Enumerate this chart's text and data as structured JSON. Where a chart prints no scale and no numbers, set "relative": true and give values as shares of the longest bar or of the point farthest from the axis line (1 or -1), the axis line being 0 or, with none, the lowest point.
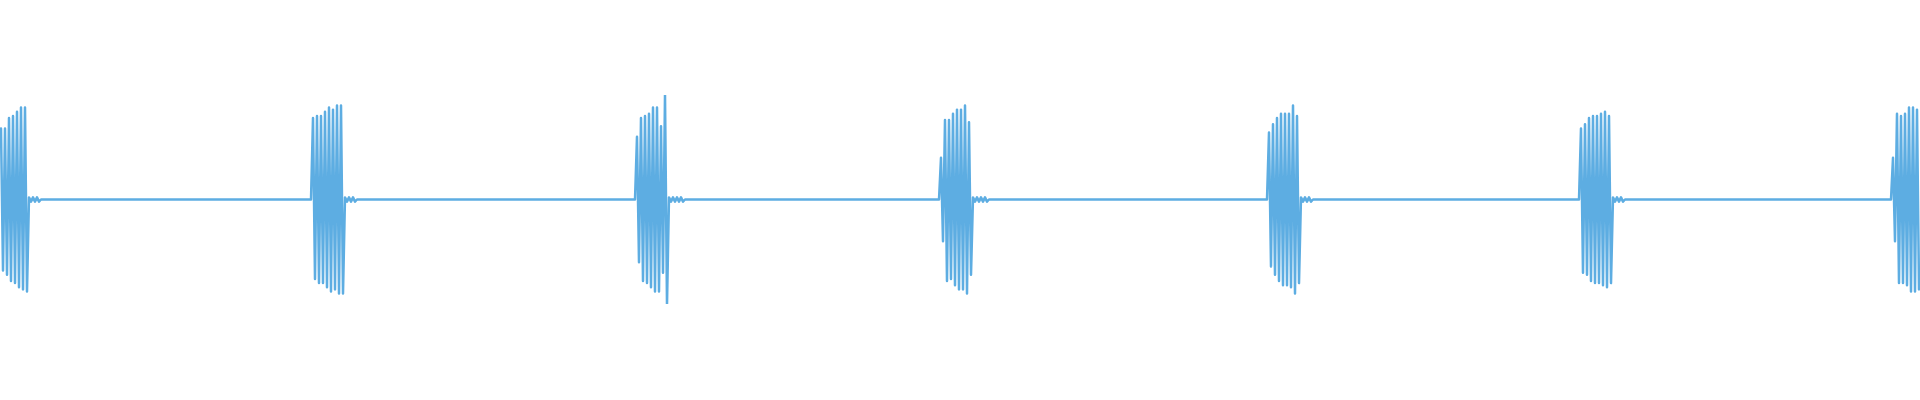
{
  "chart_data": {
    "type": "line",
    "relative": true,
    "categories": [
      null,
      null,
      null,
      null,
      null,
      null,
      null,
      null,
      null,
      null,
      null,
      null,
      null,
      null,
      null,
      null,
      null,
      null,
      null,
      null,
      null,
      null,
      null,
      null,
      null,
      null,
      null,
      null,
      null,
      null,
      null,
      null,
      null,
      null,
      null,
      null,
      null,
      null,
      null,
      null,
      null,
      null,
      null,
      null,
      null,
      null,
      null,
      null,
      null,
      null,
      null,
      null,
      null,
      null,
      null,
      null,
      null,
      null,
      null,
      null,
      null,
      null,
      null,
      null,
      null,
      null,
      null,
      null,
      null,
      null,
      null,
      null,
      null,
      null,
      null,
      null,
      null,
      null,
      null,
      null,
      null,
      null,
      null,
      null,
      null,
      null,
      null,
      null,
      null,
      null,
      null,
      null,
      null,
      null,
      null,
      null,
      null,
      null,
      null,
      null,
      null,
      null,
      null,
      null,
      null,
      null,
      null,
      null,
      null,
      null,
      null,
      null,
      null,
      null,
      null,
      null,
      null,
      null,
      null,
      null,
      null,
      null,
      null,
      null,
      null,
      null,
      null,
      null,
      null,
      null,
      null,
      null,
      null,
      null,
      null,
      null,
      null,
      null,
      null,
      null,
      null,
      null,
      null,
      null,
      null,
      null,
      null,
      null,
      null,
      null,
      null,
      null,
      null,
      null,
      null,
      null,
      null,
      null,
      null,
      null,
      null,
      null,
      null,
      null,
      null,
      null,
      null,
      null,
      null,
      null,
      null,
      null,
      null,
      null,
      null,
      null,
      null,
      null,
      null,
      null,
      null,
      null,
      null,
      null,
      null,
      null,
      null,
      null,
      null,
      null,
      null,
      null,
      null,
      null,
      null,
      null,
      null,
      null,
      null,
      null,
      null,
      null,
      null,
      null,
      null,
      null,
      null,
      null,
      null,
      null,
      null,
      null,
      null,
      null,
      null,
      null,
      null,
      null,
      null,
      null,
      null,
      null,
      null,
      null,
      null,
      null,
      null,
      null,
      null,
      null,
      null,
      null,
      null,
      null,
      null,
      null,
      null,
      null,
      null,
      null,
      null,
      null,
      null,
      null,
      null,
      null,
      null,
      null,
      null,
      null,
      null,
      null,
      null,
      null,
      null,
      null,
      null,
      null,
      null,
      null,
      null,
      null,
      null,
      null,
      null,
      null,
      null,
      null,
      null,
      null,
      null,
      null,
      null,
      null,
      null,
      null,
      null,
      null,
      null,
      null,
      null,
      null,
      null,
      null,
      null,
      null,
      null,
      null,
      null,
      null,
      null,
      null,
      null,
      null,
      null,
      null,
      null,
      null,
      null,
      null,
      null,
      null,
      null,
      null,
      null,
      null,
      null,
      null,
      null,
      null,
      null,
      null,
      null,
      null,
      null,
      null,
      null,
      null,
      null,
      null,
      null,
      null,
      null,
      null,
      null,
      null,
      null,
      null,
      null,
      null,
      null,
      null,
      null,
      null,
      null,
      null,
      null,
      null,
      null,
      null,
      null,
      null,
      null,
      null,
      null,
      null,
      null,
      null,
      null,
      null,
      null,
      null,
      null,
      null,
      null,
      null,
      null,
      null,
      null,
      null,
      null,
      null,
      null,
      null,
      null,
      null,
      null,
      null,
      null,
      null,
      null,
      null,
      null,
      null,
      null,
      null,
      null,
      null,
      null,
      null,
      null,
      null,
      null,
      null,
      null,
      null,
      null,
      null,
      null,
      null,
      null,
      null,
      null,
      null,
      null,
      null,
      null,
      null,
      null,
      null,
      null,
      null,
      null,
      null,
      null,
      null,
      null,
      null,
      null,
      null,
      null,
      null,
      null,
      null,
      null,
      null,
      null,
      null,
      null,
      null,
      null,
      null,
      null,
      null,
      null,
      null,
      null,
      null,
      null,
      null,
      null,
      null,
      null,
      null,
      null,
      null,
      null,
      null,
      null,
      null,
      null,
      null,
      null,
      null,
      null,
      null,
      null,
      null,
      null,
      null,
      null,
      null,
      null,
      null,
      null,
      null,
      null,
      null,
      null,
      null,
      null,
      null,
      null,
      null,
      null,
      null,
      null,
      null,
      null,
      null,
      null,
      null,
      null,
      null,
      null,
      null,
      null,
      null,
      null,
      null,
      null,
      null,
      null,
      null,
      null,
      null,
      null,
      null,
      null,
      null,
      null,
      null,
      null,
      null,
      null,
      null,
      null,
      null,
      null,
      null,
      null,
      null,
      null,
      null,
      null,
      null,
      null,
      null,
      null,
      null,
      null,
      null,
      null,
      null,
      null,
      null,
      null,
      null,
      null,
      null,
      null,
      null,
      null,
      null,
      null,
      null,
      null,
      null,
      null,
      null,
      null,
      null,
      null,
      null,
      null,
      null,
      null,
      null,
      null,
      null,
      null,
      null,
      null,
      null,
      null,
      null,
      null,
      null,
      null,
      null,
      null,
      null,
      null,
      null,
      null,
      null,
      null,
      null,
      null,
      null,
      null,
      null,
      null,
      null,
      null,
      null,
      null,
      null,
      null,
      null,
      null,
      null,
      null,
      null,
      null,
      null,
      null,
      null,
      null,
      null,
      null,
      null,
      null,
      null,
      null,
      null,
      null,
      null,
      null,
      null,
      null,
      null,
      null,
      null,
      null,
      null,
      null,
      null,
      null,
      null,
      null,
      null,
      null,
      null,
      null,
      null,
      null,
      null,
      null,
      null,
      null,
      null,
      null,
      null,
      null,
      null,
      null,
      null,
      null,
      null,
      null,
      null,
      null,
      null,
      null,
      null,
      null,
      null,
      null,
      null,
      null,
      null,
      null,
      null,
      null,
      null,
      null,
      null,
      null,
      null,
      null,
      null,
      null,
      null,
      null,
      null,
      null,
      null,
      null,
      null,
      null,
      null,
      null,
      null,
      null,
      null,
      null,
      null,
      null,
      null,
      null,
      null,
      null,
      null,
      null,
      null,
      null,
      null,
      null,
      null,
      null,
      null,
      null,
      null,
      null,
      null,
      null,
      null,
      null,
      null,
      null,
      null,
      null,
      null,
      null,
      null,
      null,
      null,
      null,
      null,
      null,
      null,
      null,
      null,
      null,
      null,
      null,
      null,
      null,
      null,
      null,
      null,
      null,
      null,
      null,
      null,
      null,
      null,
      null,
      null,
      null,
      null,
      null,
      null,
      null,
      null,
      null,
      null,
      null,
      null,
      null,
      null,
      null,
      null,
      null,
      null,
      null,
      null,
      null,
      null,
      null,
      null,
      null,
      null,
      null,
      null,
      null,
      null,
      null,
      null,
      null,
      null,
      null,
      null,
      null,
      null,
      null,
      null,
      null,
      null,
      null,
      null,
      null,
      null,
      null,
      null,
      null,
      null,
      null,
      null,
      null,
      null,
      null,
      null,
      null,
      null,
      null,
      null,
      null,
      null,
      null,
      null,
      null,
      null,
      null,
      null,
      null,
      null,
      null,
      null,
      null,
      null,
      null,
      null,
      null,
      null,
      null,
      null,
      null,
      null,
      null,
      null,
      null,
      null,
      null,
      null,
      null,
      null,
      null,
      null,
      null,
      null,
      null,
      null,
      null,
      null,
      null,
      null,
      null,
      null,
      null,
      null,
      null,
      null,
      null,
      null,
      null,
      null,
      null,
      null,
      null,
      null,
      null,
      null,
      null,
      null,
      null,
      null,
      null,
      null,
      null,
      null,
      null,
      null,
      null,
      null,
      null,
      null,
      null,
      null,
      null,
      null,
      null,
      null,
      null,
      null,
      null,
      null,
      null,
      null,
      null,
      null,
      null,
      null,
      null,
      null,
      null,
      null,
      null,
      null,
      null,
      null,
      null,
      null,
      null,
      null,
      null,
      null,
      null,
      null,
      null,
      null,
      null,
      null,
      null,
      null,
      null,
      null,
      null,
      null,
      null,
      null,
      null,
      null,
      null,
      null,
      null,
      null,
      null,
      null,
      null,
      null,
      null,
      null,
      null,
      null,
      null,
      null,
      null,
      null,
      null,
      null,
      null,
      null,
      null,
      null,
      null,
      null,
      null,
      null,
      null,
      null,
      null,
      null,
      null,
      null,
      null,
      null,
      null,
      null,
      null,
      null,
      null,
      null,
      null,
      null,
      null,
      null,
      null,
      null,
      null,
      null,
      null,
      null,
      null,
      null,
      null,
      null,
      null,
      null,
      null,
      null,
      null,
      null,
      null,
      null,
      null,
      null,
      null,
      null,
      null,
      null,
      null,
      null,
      null,
      null,
      null,
      null,
      null,
      null
    ],
    "series": [
      {
        "color": "#5dade2",
        "values": [
          0.84,
          0.16,
          0.84,
          0.14,
          0.89,
          0.11,
          0.9,
          0.1,
          0.92,
          0.08,
          0.94,
          0.07,
          0.94,
          0.06,
          0.51,
          0.49,
          0.51,
          0.49,
          0.51,
          0.49,
          0.5,
          0.5,
          0.5,
          0.5,
          0.5,
          0.5,
          0.5,
          0.5,
          0.5,
          0.5,
          0.5,
          0.5,
          0.5,
          0.5,
          0.5,
          0.5,
          0.5,
          0.5,
          0.5,
          0.5,
          0.5,
          0.5,
          0.5,
          0.5,
          0.5,
          0.5,
          0.5,
          0.5,
          0.5,
          0.5,
          0.5,
          0.5,
          0.5,
          0.5,
          0.5,
          0.5,
          0.5,
          0.5,
          0.5,
          0.5,
          0.5,
          0.5,
          0.5,
          0.5,
          0.5,
          0.5,
          0.5,
          0.5,
          0.5,
          0.5,
          0.5,
          0.5,
          0.5,
          0.5,
          0.5,
          0.5,
          0.5,
          0.5,
          0.5,
          0.5,
          0.5,
          0.5,
          0.5,
          0.5,
          0.5,
          0.5,
          0.5,
          0.5,
          0.5,
          0.5,
          0.5,
          0.5,
          0.5,
          0.5,
          0.5,
          0.5,
          0.5,
          0.5,
          0.5,
          0.5,
          0.5,
          0.5,
          0.5,
          0.5,
          0.5,
          0.5,
          0.5,
          0.5,
          0.5,
          0.5,
          0.5,
          0.5,
          0.5,
          0.5,
          0.5,
          0.5,
          0.5,
          0.5,
          0.5,
          0.5,
          0.5,
          0.5,
          0.5,
          0.5,
          0.5,
          0.5,
          0.5,
          0.5,
          0.5,
          0.5,
          0.5,
          0.5,
          0.5,
          0.5,
          0.5,
          0.5,
          0.5,
          0.5,
          0.5,
          0.5,
          0.5,
          0.5,
          0.5,
          0.5,
          0.5,
          0.5,
          0.5,
          0.5,
          0.5,
          0.5,
          0.5,
          0.5,
          0.5,
          0.5,
          0.5,
          0.5,
          0.89,
          0.12,
          0.9,
          0.1,
          0.9,
          0.1,
          0.92,
          0.08,
          0.94,
          0.06,
          0.93,
          0.07,
          0.95,
          0.05,
          0.95,
          0.05,
          0.51,
          0.49,
          0.51,
          0.49,
          0.51,
          0.49,
          0.5,
          0.5,
          0.5,
          0.5,
          0.5,
          0.5,
          0.5,
          0.5,
          0.5,
          0.5,
          0.5,
          0.5,
          0.5,
          0.5,
          0.5,
          0.5,
          0.5,
          0.5,
          0.5,
          0.5,
          0.5,
          0.5,
          0.5,
          0.5,
          0.5,
          0.5,
          0.5,
          0.5,
          0.5,
          0.5,
          0.5,
          0.5,
          0.5,
          0.5,
          0.5,
          0.5,
          0.5,
          0.5,
          0.5,
          0.5,
          0.5,
          0.5,
          0.5,
          0.5,
          0.5,
          0.5,
          0.5,
          0.5,
          0.5,
          0.5,
          0.5,
          0.5,
          0.5,
          0.5,
          0.5,
          0.5,
          0.5,
          0.5,
          0.5,
          0.5,
          0.5,
          0.5,
          0.5,
          0.5,
          0.5,
          0.5,
          0.5,
          0.5,
          0.5,
          0.5,
          0.5,
          0.5,
          0.5,
          0.5,
          0.5,
          0.5,
          0.5,
          0.5,
          0.5,
          0.5,
          0.5,
          0.5,
          0.5,
          0.5,
          0.5,
          0.5,
          0.5,
          0.5,
          0.5,
          0.5,
          0.5,
          0.5,
          0.5,
          0.5,
          0.5,
          0.5,
          0.5,
          0.5,
          0.5,
          0.5,
          0.5,
          0.5,
          0.5,
          0.5,
          0.5,
          0.5,
          0.5,
          0.5,
          0.5,
          0.5,
          0.5,
          0.5,
          0.5,
          0.5,
          0.5,
          0.5,
          0.5,
          0.5,
          0.5,
          0.5,
          0.5,
          0.5,
          0.5,
          0.5,
          0.5,
          0.5,
          0.5,
          0.5,
          0.5,
          0.5,
          0.5,
          0.5,
          0.5,
          0.5,
          0.5,
          0.5,
          0.5,
          0.5,
          0.5,
          0.5,
          0.8,
          0.2,
          0.89,
          0.11,
          0.9,
          0.1,
          0.91,
          0.08,
          0.94,
          0.06,
          0.94,
          0.06,
          0.85,
          0.15,
          1,
          0,
          0.51,
          0.49,
          0.51,
          0.49,
          0.51,
          0.49,
          0.51,
          0.49,
          0.5,
          0.5,
          0.5,
          0.5,
          0.5,
          0.5,
          0.5,
          0.5,
          0.5,
          0.5,
          0.5,
          0.5,
          0.5,
          0.5,
          0.5,
          0.5,
          0.5,
          0.5,
          0.5,
          0.5,
          0.5,
          0.5,
          0.5,
          0.5,
          0.5,
          0.5,
          0.5,
          0.5,
          0.5,
          0.5,
          0.5,
          0.5,
          0.5,
          0.5,
          0.5,
          0.5,
          0.5,
          0.5,
          0.5,
          0.5,
          0.5,
          0.5,
          0.5,
          0.5,
          0.5,
          0.5,
          0.5,
          0.5,
          0.5,
          0.5,
          0.5,
          0.5,
          0.5,
          0.5,
          0.5,
          0.5,
          0.5,
          0.5,
          0.5,
          0.5,
          0.5,
          0.5,
          0.5,
          0.5,
          0.5,
          0.5,
          0.5,
          0.5,
          0.5,
          0.5,
          0.5,
          0.5,
          0.5,
          0.5,
          0.5,
          0.5,
          0.5,
          0.5,
          0.5,
          0.5,
          0.5,
          0.5,
          0.5,
          0.5,
          0.5,
          0.5,
          0.5,
          0.5,
          0.5,
          0.5,
          0.5,
          0.5,
          0.5,
          0.5,
          0.5,
          0.5,
          0.5,
          0.5,
          0.5,
          0.5,
          0.5,
          0.5,
          0.5,
          0.5,
          0.5,
          0.5,
          0.5,
          0.5,
          0.5,
          0.5,
          0.5,
          0.5,
          0.5,
          0.5,
          0.5,
          0.5,
          0.5,
          0.5,
          0.5,
          0.5,
          0.5,
          0.5,
          0.5,
          0.5,
          0.5,
          0.5,
          0.5,
          0.5,
          0.7,
          0.3,
          0.88,
          0.11,
          0.88,
          0.12,
          0.91,
          0.09,
          0.93,
          0.07,
          0.93,
          0.07,
          0.95,
          0.05,
          0.87,
          0.14,
          0.51,
          0.49,
          0.51,
          0.49,
          0.51,
          0.49,
          0.51,
          0.49,
          0.5,
          0.5,
          0.5,
          0.5,
          0.5,
          0.5,
          0.5,
          0.5,
          0.5,
          0.5,
          0.5,
          0.5,
          0.5,
          0.5,
          0.5,
          0.5,
          0.5,
          0.5,
          0.5,
          0.5,
          0.5,
          0.5,
          0.5,
          0.5,
          0.5,
          0.5,
          0.5,
          0.5,
          0.5,
          0.5,
          0.5,
          0.5,
          0.5,
          0.5,
          0.5,
          0.5,
          0.5,
          0.5,
          0.5,
          0.5,
          0.5,
          0.5,
          0.5,
          0.5,
          0.5,
          0.5,
          0.5,
          0.5,
          0.5,
          0.5,
          0.5,
          0.5,
          0.5,
          0.5,
          0.5,
          0.5,
          0.5,
          0.5,
          0.5,
          0.5,
          0.5,
          0.5,
          0.5,
          0.5,
          0.5,
          0.5,
          0.5,
          0.5,
          0.5,
          0.5,
          0.5,
          0.5,
          0.5,
          0.5,
          0.5,
          0.5,
          0.5,
          0.5,
          0.5,
          0.5,
          0.5,
          0.5,
          0.5,
          0.5,
          0.5,
          0.5,
          0.5,
          0.5,
          0.5,
          0.5,
          0.5,
          0.5,
          0.5,
          0.5,
          0.5,
          0.5,
          0.5,
          0.5,
          0.5,
          0.5,
          0.5,
          0.5,
          0.5,
          0.5,
          0.5,
          0.5,
          0.5,
          0.5,
          0.5,
          0.5,
          0.5,
          0.5,
          0.5,
          0.5,
          0.5,
          0.5,
          0.5,
          0.5,
          0.5,
          0.5,
          0.5,
          0.5,
          0.5,
          0.5,
          0.5,
          0.5,
          0.5,
          0.5,
          0.5,
          0.5,
          0.5,
          0.5,
          0.5,
          0.5,
          0.5,
          0.5,
          0.5,
          0.5,
          0.5,
          0.5,
          0.82,
          0.18,
          0.86,
          0.14,
          0.89,
          0.11,
          0.91,
          0.09,
          0.91,
          0.09,
          0.91,
          0.08,
          0.95,
          0.05,
          0.9,
          0.1,
          0.51,
          0.49,
          0.51,
          0.49,
          0.51,
          0.49,
          0.5,
          0.5,
          0.5,
          0.5,
          0.5,
          0.5,
          0.5,
          0.5,
          0.5,
          0.5,
          0.5,
          0.5,
          0.5,
          0.5,
          0.5,
          0.5,
          0.5,
          0.5,
          0.5,
          0.5,
          0.5,
          0.5,
          0.5,
          0.5,
          0.5,
          0.5,
          0.5,
          0.5,
          0.5,
          0.5,
          0.5,
          0.5,
          0.5,
          0.5,
          0.5,
          0.5,
          0.5,
          0.5,
          0.5,
          0.5,
          0.5,
          0.5,
          0.5,
          0.5,
          0.5,
          0.5,
          0.5,
          0.5,
          0.5,
          0.5,
          0.5,
          0.5,
          0.5,
          0.5,
          0.5,
          0.5,
          0.5,
          0.5,
          0.5,
          0.5,
          0.5,
          0.5,
          0.5,
          0.5,
          0.5,
          0.5,
          0.5,
          0.5,
          0.5,
          0.5,
          0.5,
          0.5,
          0.5,
          0.5,
          0.5,
          0.5,
          0.5,
          0.5,
          0.5,
          0.5,
          0.5,
          0.5,
          0.5,
          0.5,
          0.5,
          0.5,
          0.5,
          0.5,
          0.5,
          0.5,
          0.5,
          0.5,
          0.5,
          0.5,
          0.5,
          0.5,
          0.5,
          0.5,
          0.5,
          0.5,
          0.5,
          0.5,
          0.5,
          0.5,
          0.5,
          0.5,
          0.5,
          0.5,
          0.5,
          0.5,
          0.5,
          0.5,
          0.5,
          0.5,
          0.5,
          0.5,
          0.5,
          0.5,
          0.5,
          0.5,
          0.5,
          0.5,
          0.5,
          0.5,
          0.5,
          0.5,
          0.5,
          0.5,
          0.5,
          0.5,
          0.5,
          0.5,
          0.5,
          0.5,
          0.84,
          0.15,
          0.86,
          0.14,
          0.89,
          0.11,
          0.9,
          0.1,
          0.9,
          0.1,
          0.91,
          0.09,
          0.92,
          0.08,
          0.9,
          0.1,
          0.51,
          0.49,
          0.51,
          0.49,
          0.51,
          0.49,
          0.5,
          0.5,
          0.5,
          0.5,
          0.5,
          0.5,
          0.5,
          0.5,
          0.5,
          0.5,
          0.5,
          0.5,
          0.5,
          0.5,
          0.5,
          0.5,
          0.5,
          0.5,
          0.5,
          0.5,
          0.5,
          0.5,
          0.5,
          0.5,
          0.5,
          0.5,
          0.5,
          0.5,
          0.5,
          0.5,
          0.5,
          0.5,
          0.5,
          0.5,
          0.5,
          0.5,
          0.5,
          0.5,
          0.5,
          0.5,
          0.5,
          0.5,
          0.5,
          0.5,
          0.5,
          0.5,
          0.5,
          0.5,
          0.5,
          0.5,
          0.5,
          0.5,
          0.5,
          0.5,
          0.5,
          0.5,
          0.5,
          0.5,
          0.5,
          0.5,
          0.5,
          0.5,
          0.5,
          0.5,
          0.5,
          0.5,
          0.5,
          0.5,
          0.5,
          0.5,
          0.5,
          0.5,
          0.5,
          0.5,
          0.5,
          0.5,
          0.5,
          0.5,
          0.5,
          0.5,
          0.5,
          0.5,
          0.5,
          0.5,
          0.5,
          0.5,
          0.5,
          0.5,
          0.5,
          0.5,
          0.5,
          0.5,
          0.5,
          0.5,
          0.5,
          0.5,
          0.5,
          0.5,
          0.5,
          0.5,
          0.5,
          0.5,
          0.5,
          0.5,
          0.5,
          0.5,
          0.5,
          0.5,
          0.5,
          0.5,
          0.5,
          0.5,
          0.5,
          0.5,
          0.5,
          0.5,
          0.5,
          0.5,
          0.5,
          0.5,
          0.5,
          0.5,
          0.5,
          0.5,
          0.5,
          0.5,
          0.5,
          0.5,
          0.5,
          0.5,
          0.5,
          0.5,
          0.5,
          0.5,
          0.7,
          0.3,
          0.91,
          0.1,
          0.9,
          0.1,
          0.91,
          0.09,
          0.94,
          0.06,
          0.94,
          0.06,
          0.93,
          0.07
        ]
      }
    ]
  }
}
